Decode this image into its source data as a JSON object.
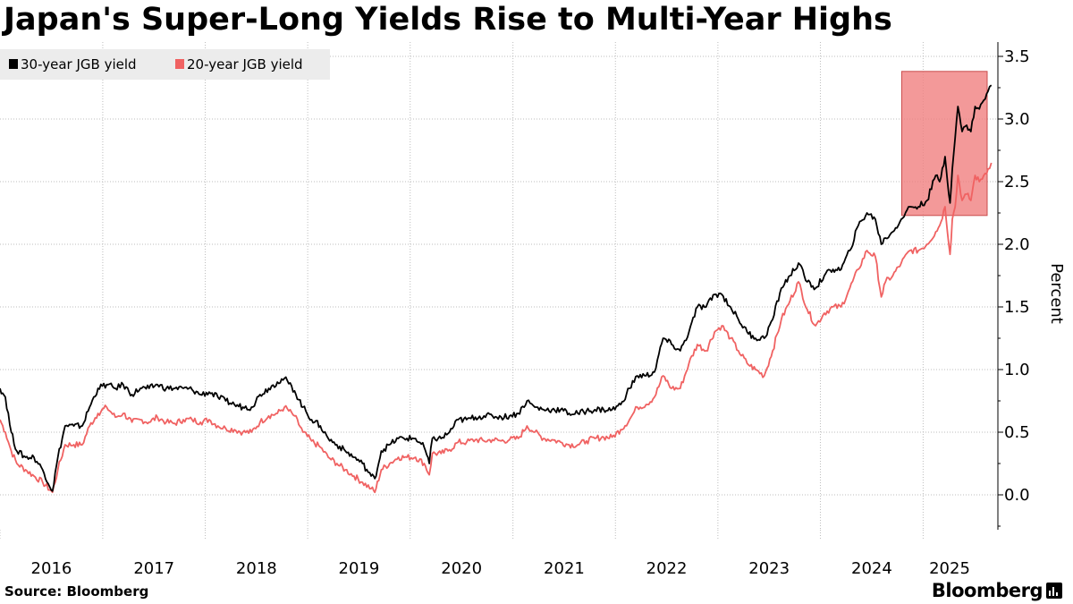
{
  "title": "Japan's Super-Long Yields Rise to Multi-Year Highs",
  "source": "Source: Bloomberg",
  "brand": "Bloomberg",
  "brand_icon": "bloomberg-chart-icon",
  "chart_data": {
    "type": "line",
    "title": "Japan's Super-Long Yields Rise to Multi-Year Highs",
    "ylabel": "Percent",
    "xlabel": "",
    "ylim": [
      -0.3,
      3.6
    ],
    "xlim": [
      "2016-01-01",
      "2025-05-05"
    ],
    "yticks": [
      "0.0",
      "0.5",
      "1.0",
      "1.5",
      "2.0",
      "2.5",
      "3.0",
      "3.5"
    ],
    "xticks": [
      "2016",
      "2017",
      "2018",
      "2019",
      "2020",
      "2021",
      "2022",
      "2023",
      "2024",
      "2025"
    ],
    "grid": true,
    "legend_position": "top-left",
    "highlight": {
      "x": [
        "2024-10-15",
        "2025-05-05"
      ],
      "y": [
        2.23,
        3.38
      ],
      "color": "#f08080"
    },
    "series": [
      {
        "name": "30-year JGB yield",
        "color": "#000000",
        "points": [
          [
            "2016-01-01",
            0.85
          ],
          [
            "2016-01-20",
            0.78
          ],
          [
            "2016-02-10",
            0.5
          ],
          [
            "2016-03-01",
            0.35
          ],
          [
            "2016-04-01",
            0.3
          ],
          [
            "2016-05-01",
            0.3
          ],
          [
            "2016-06-01",
            0.2
          ],
          [
            "2016-07-06",
            0.03
          ],
          [
            "2016-07-25",
            0.3
          ],
          [
            "2016-08-20",
            0.55
          ],
          [
            "2016-09-20",
            0.55
          ],
          [
            "2016-10-20",
            0.55
          ],
          [
            "2016-11-15",
            0.7
          ],
          [
            "2016-12-15",
            0.85
          ],
          [
            "2017-01-15",
            0.88
          ],
          [
            "2017-02-15",
            0.85
          ],
          [
            "2017-03-15",
            0.88
          ],
          [
            "2017-04-15",
            0.8
          ],
          [
            "2017-05-15",
            0.85
          ],
          [
            "2017-06-15",
            0.85
          ],
          [
            "2017-07-15",
            0.88
          ],
          [
            "2017-08-15",
            0.85
          ],
          [
            "2017-09-15",
            0.85
          ],
          [
            "2017-10-15",
            0.85
          ],
          [
            "2017-11-15",
            0.84
          ],
          [
            "2017-12-15",
            0.8
          ],
          [
            "2018-01-15",
            0.82
          ],
          [
            "2018-02-15",
            0.78
          ],
          [
            "2018-03-15",
            0.75
          ],
          [
            "2018-04-15",
            0.72
          ],
          [
            "2018-05-15",
            0.7
          ],
          [
            "2018-06-15",
            0.7
          ],
          [
            "2018-07-15",
            0.8
          ],
          [
            "2018-08-15",
            0.85
          ],
          [
            "2018-09-15",
            0.9
          ],
          [
            "2018-10-10",
            0.93
          ],
          [
            "2018-11-15",
            0.83
          ],
          [
            "2018-12-15",
            0.7
          ],
          [
            "2019-01-15",
            0.6
          ],
          [
            "2019-02-15",
            0.55
          ],
          [
            "2019-03-15",
            0.45
          ],
          [
            "2019-04-15",
            0.4
          ],
          [
            "2019-05-15",
            0.35
          ],
          [
            "2019-06-15",
            0.3
          ],
          [
            "2019-07-15",
            0.25
          ],
          [
            "2019-08-15",
            0.15
          ],
          [
            "2019-08-28",
            0.13
          ],
          [
            "2019-09-20",
            0.35
          ],
          [
            "2019-10-20",
            0.4
          ],
          [
            "2019-11-20",
            0.45
          ],
          [
            "2019-12-20",
            0.45
          ],
          [
            "2020-01-20",
            0.45
          ],
          [
            "2020-02-20",
            0.38
          ],
          [
            "2020-03-09",
            0.25
          ],
          [
            "2020-03-20",
            0.45
          ],
          [
            "2020-04-20",
            0.45
          ],
          [
            "2020-05-20",
            0.5
          ],
          [
            "2020-06-20",
            0.6
          ],
          [
            "2020-07-20",
            0.6
          ],
          [
            "2020-08-20",
            0.62
          ],
          [
            "2020-09-20",
            0.63
          ],
          [
            "2020-10-20",
            0.63
          ],
          [
            "2020-11-20",
            0.62
          ],
          [
            "2020-12-20",
            0.63
          ],
          [
            "2021-01-20",
            0.65
          ],
          [
            "2021-02-20",
            0.75
          ],
          [
            "2021-03-20",
            0.7
          ],
          [
            "2021-04-20",
            0.68
          ],
          [
            "2021-05-20",
            0.68
          ],
          [
            "2021-06-20",
            0.68
          ],
          [
            "2021-07-20",
            0.65
          ],
          [
            "2021-08-20",
            0.65
          ],
          [
            "2021-09-20",
            0.67
          ],
          [
            "2021-10-20",
            0.68
          ],
          [
            "2021-11-20",
            0.68
          ],
          [
            "2021-12-20",
            0.68
          ],
          [
            "2022-01-20",
            0.72
          ],
          [
            "2022-02-20",
            0.85
          ],
          [
            "2022-03-20",
            0.95
          ],
          [
            "2022-04-20",
            0.95
          ],
          [
            "2022-05-20",
            0.98
          ],
          [
            "2022-06-20",
            1.25
          ],
          [
            "2022-07-20",
            1.2
          ],
          [
            "2022-08-20",
            1.15
          ],
          [
            "2022-09-20",
            1.3
          ],
          [
            "2022-10-20",
            1.5
          ],
          [
            "2022-11-20",
            1.5
          ],
          [
            "2022-12-20",
            1.6
          ],
          [
            "2023-01-15",
            1.6
          ],
          [
            "2023-02-15",
            1.5
          ],
          [
            "2023-03-15",
            1.4
          ],
          [
            "2023-04-15",
            1.3
          ],
          [
            "2023-05-15",
            1.25
          ],
          [
            "2023-06-15",
            1.25
          ],
          [
            "2023-07-15",
            1.4
          ],
          [
            "2023-08-15",
            1.65
          ],
          [
            "2023-09-15",
            1.75
          ],
          [
            "2023-10-15",
            1.85
          ],
          [
            "2023-11-15",
            1.7
          ],
          [
            "2023-12-15",
            1.65
          ],
          [
            "2024-01-15",
            1.75
          ],
          [
            "2024-02-15",
            1.8
          ],
          [
            "2024-03-15",
            1.8
          ],
          [
            "2024-04-15",
            1.95
          ],
          [
            "2024-05-15",
            2.15
          ],
          [
            "2024-06-15",
            2.25
          ],
          [
            "2024-07-15",
            2.2
          ],
          [
            "2024-08-05",
            2.0
          ],
          [
            "2024-08-20",
            2.05
          ],
          [
            "2024-09-15",
            2.1
          ],
          [
            "2024-10-15",
            2.2
          ],
          [
            "2024-11-15",
            2.3
          ],
          [
            "2024-12-15",
            2.3
          ],
          [
            "2025-01-15",
            2.35
          ],
          [
            "2025-02-15",
            2.55
          ],
          [
            "2025-03-01",
            2.5
          ],
          [
            "2025-03-20",
            2.7
          ],
          [
            "2025-04-07",
            2.33
          ],
          [
            "2025-04-15",
            2.6
          ],
          [
            "2025-04-25",
            2.85
          ],
          [
            "2025-05-05",
            3.1
          ],
          [
            "2025-05-20",
            2.9
          ],
          [
            "2025-06-05",
            2.95
          ],
          [
            "2025-06-20",
            2.9
          ],
          [
            "2025-07-05",
            3.1
          ],
          [
            "2025-07-20",
            3.08
          ],
          [
            "2025-08-05",
            3.15
          ],
          [
            "2025-08-20",
            3.22
          ],
          [
            "2025-09-01",
            3.27
          ]
        ]
      },
      {
        "name": "20-year JGB yield",
        "color": "#f06262",
        "points": [
          [
            "2016-01-01",
            0.6
          ],
          [
            "2016-01-20",
            0.5
          ],
          [
            "2016-02-10",
            0.35
          ],
          [
            "2016-03-01",
            0.25
          ],
          [
            "2016-04-01",
            0.2
          ],
          [
            "2016-05-01",
            0.15
          ],
          [
            "2016-06-01",
            0.1
          ],
          [
            "2016-07-06",
            0.02
          ],
          [
            "2016-07-25",
            0.2
          ],
          [
            "2016-08-20",
            0.4
          ],
          [
            "2016-09-20",
            0.4
          ],
          [
            "2016-10-20",
            0.4
          ],
          [
            "2016-11-15",
            0.55
          ],
          [
            "2016-12-15",
            0.65
          ],
          [
            "2017-01-15",
            0.7
          ],
          [
            "2017-02-15",
            0.62
          ],
          [
            "2017-03-15",
            0.65
          ],
          [
            "2017-04-15",
            0.58
          ],
          [
            "2017-05-15",
            0.6
          ],
          [
            "2017-06-15",
            0.58
          ],
          [
            "2017-07-15",
            0.62
          ],
          [
            "2017-08-15",
            0.58
          ],
          [
            "2017-09-15",
            0.57
          ],
          [
            "2017-10-15",
            0.6
          ],
          [
            "2017-11-15",
            0.6
          ],
          [
            "2017-12-15",
            0.58
          ],
          [
            "2018-01-15",
            0.6
          ],
          [
            "2018-02-15",
            0.55
          ],
          [
            "2018-03-15",
            0.53
          ],
          [
            "2018-04-15",
            0.52
          ],
          [
            "2018-05-15",
            0.5
          ],
          [
            "2018-06-15",
            0.5
          ],
          [
            "2018-07-15",
            0.58
          ],
          [
            "2018-08-15",
            0.63
          ],
          [
            "2018-09-15",
            0.65
          ],
          [
            "2018-10-10",
            0.7
          ],
          [
            "2018-11-15",
            0.63
          ],
          [
            "2018-12-15",
            0.5
          ],
          [
            "2019-01-15",
            0.43
          ],
          [
            "2019-02-15",
            0.38
          ],
          [
            "2019-03-15",
            0.3
          ],
          [
            "2019-04-15",
            0.25
          ],
          [
            "2019-05-15",
            0.2
          ],
          [
            "2019-06-15",
            0.15
          ],
          [
            "2019-07-15",
            0.1
          ],
          [
            "2019-08-15",
            0.05
          ],
          [
            "2019-08-28",
            0.02
          ],
          [
            "2019-09-20",
            0.2
          ],
          [
            "2019-10-20",
            0.25
          ],
          [
            "2019-11-20",
            0.3
          ],
          [
            "2019-12-20",
            0.3
          ],
          [
            "2020-01-20",
            0.3
          ],
          [
            "2020-02-20",
            0.25
          ],
          [
            "2020-03-09",
            0.16
          ],
          [
            "2020-03-20",
            0.33
          ],
          [
            "2020-04-20",
            0.33
          ],
          [
            "2020-05-20",
            0.36
          ],
          [
            "2020-06-20",
            0.42
          ],
          [
            "2020-07-20",
            0.42
          ],
          [
            "2020-08-20",
            0.44
          ],
          [
            "2020-09-20",
            0.43
          ],
          [
            "2020-10-20",
            0.44
          ],
          [
            "2020-11-20",
            0.43
          ],
          [
            "2020-12-20",
            0.44
          ],
          [
            "2021-01-20",
            0.45
          ],
          [
            "2021-02-20",
            0.55
          ],
          [
            "2021-03-20",
            0.5
          ],
          [
            "2021-04-20",
            0.45
          ],
          [
            "2021-05-20",
            0.44
          ],
          [
            "2021-06-20",
            0.42
          ],
          [
            "2021-07-20",
            0.4
          ],
          [
            "2021-08-20",
            0.4
          ],
          [
            "2021-09-20",
            0.43
          ],
          [
            "2021-10-20",
            0.45
          ],
          [
            "2021-11-20",
            0.46
          ],
          [
            "2021-12-20",
            0.46
          ],
          [
            "2022-01-20",
            0.52
          ],
          [
            "2022-02-20",
            0.6
          ],
          [
            "2022-03-20",
            0.7
          ],
          [
            "2022-04-20",
            0.72
          ],
          [
            "2022-05-20",
            0.78
          ],
          [
            "2022-06-20",
            0.95
          ],
          [
            "2022-07-20",
            0.85
          ],
          [
            "2022-08-20",
            0.85
          ],
          [
            "2022-09-20",
            1.05
          ],
          [
            "2022-10-20",
            1.2
          ],
          [
            "2022-11-20",
            1.15
          ],
          [
            "2022-12-20",
            1.3
          ],
          [
            "2023-01-15",
            1.35
          ],
          [
            "2023-02-15",
            1.25
          ],
          [
            "2023-03-15",
            1.15
          ],
          [
            "2023-04-15",
            1.05
          ],
          [
            "2023-05-15",
            1.0
          ],
          [
            "2023-06-15",
            0.95
          ],
          [
            "2023-07-15",
            1.15
          ],
          [
            "2023-08-15",
            1.4
          ],
          [
            "2023-09-15",
            1.55
          ],
          [
            "2023-10-15",
            1.7
          ],
          [
            "2023-11-15",
            1.48
          ],
          [
            "2023-12-15",
            1.35
          ],
          [
            "2024-01-15",
            1.45
          ],
          [
            "2024-02-15",
            1.5
          ],
          [
            "2024-03-15",
            1.5
          ],
          [
            "2024-04-15",
            1.65
          ],
          [
            "2024-05-15",
            1.8
          ],
          [
            "2024-06-15",
            1.95
          ],
          [
            "2024-07-15",
            1.9
          ],
          [
            "2024-08-05",
            1.58
          ],
          [
            "2024-08-20",
            1.7
          ],
          [
            "2024-09-15",
            1.75
          ],
          [
            "2024-10-15",
            1.85
          ],
          [
            "2024-11-15",
            1.95
          ],
          [
            "2024-12-15",
            1.95
          ],
          [
            "2025-01-15",
            2.0
          ],
          [
            "2025-02-15",
            2.1
          ],
          [
            "2025-03-01",
            2.15
          ],
          [
            "2025-03-20",
            2.3
          ],
          [
            "2025-04-07",
            1.92
          ],
          [
            "2025-04-15",
            2.2
          ],
          [
            "2025-04-25",
            2.3
          ],
          [
            "2025-05-05",
            2.55
          ],
          [
            "2025-05-20",
            2.35
          ],
          [
            "2025-06-05",
            2.4
          ],
          [
            "2025-06-20",
            2.35
          ],
          [
            "2025-07-05",
            2.55
          ],
          [
            "2025-07-20",
            2.5
          ],
          [
            "2025-08-05",
            2.55
          ],
          [
            "2025-08-20",
            2.6
          ],
          [
            "2025-09-01",
            2.65
          ]
        ]
      }
    ]
  }
}
